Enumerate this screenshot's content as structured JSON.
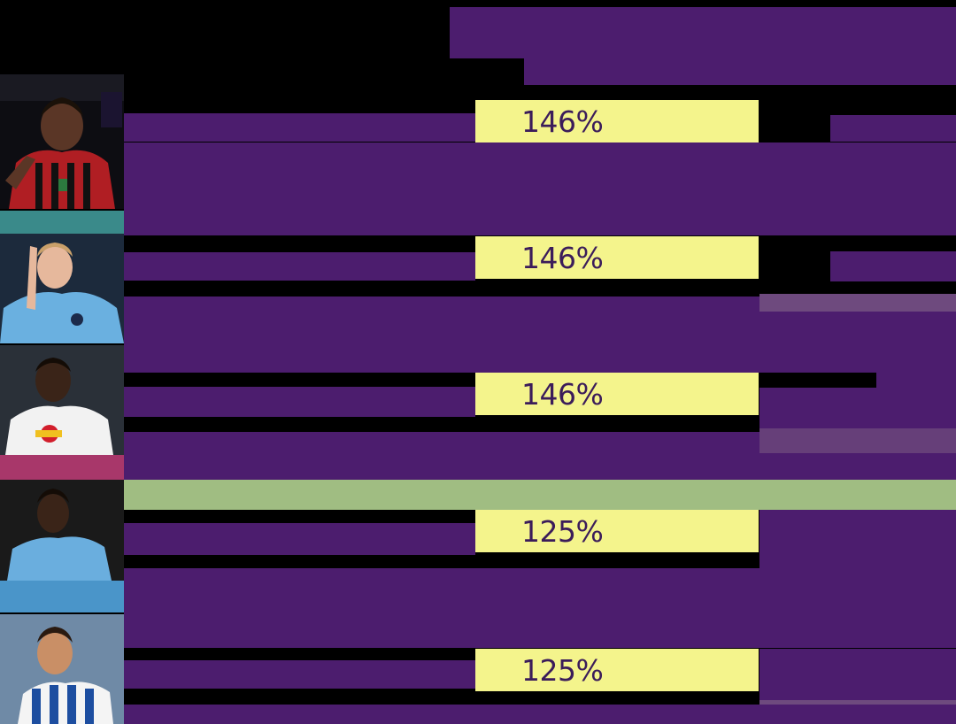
{
  "colors": {
    "background": "#000000",
    "purple": "#4c1d6e",
    "yellow": "#f4f48c",
    "green": "#a0bd82",
    "muted_purple": "#6e4a7e",
    "percent_text": "#3b1c5a"
  },
  "rows": [
    {
      "value": "146%",
      "photo": "player-photo-milan-red-black-kit"
    },
    {
      "value": "146%",
      "photo": "player-photo-sky-blue-kit-pointing"
    },
    {
      "value": "146%",
      "photo": "player-photo-white-kit-red-bull"
    },
    {
      "value": "125%",
      "photo": "player-photo-sky-blue-kit"
    },
    {
      "value": "125%",
      "photo": "player-photo-blue-white-striped-kit"
    }
  ]
}
